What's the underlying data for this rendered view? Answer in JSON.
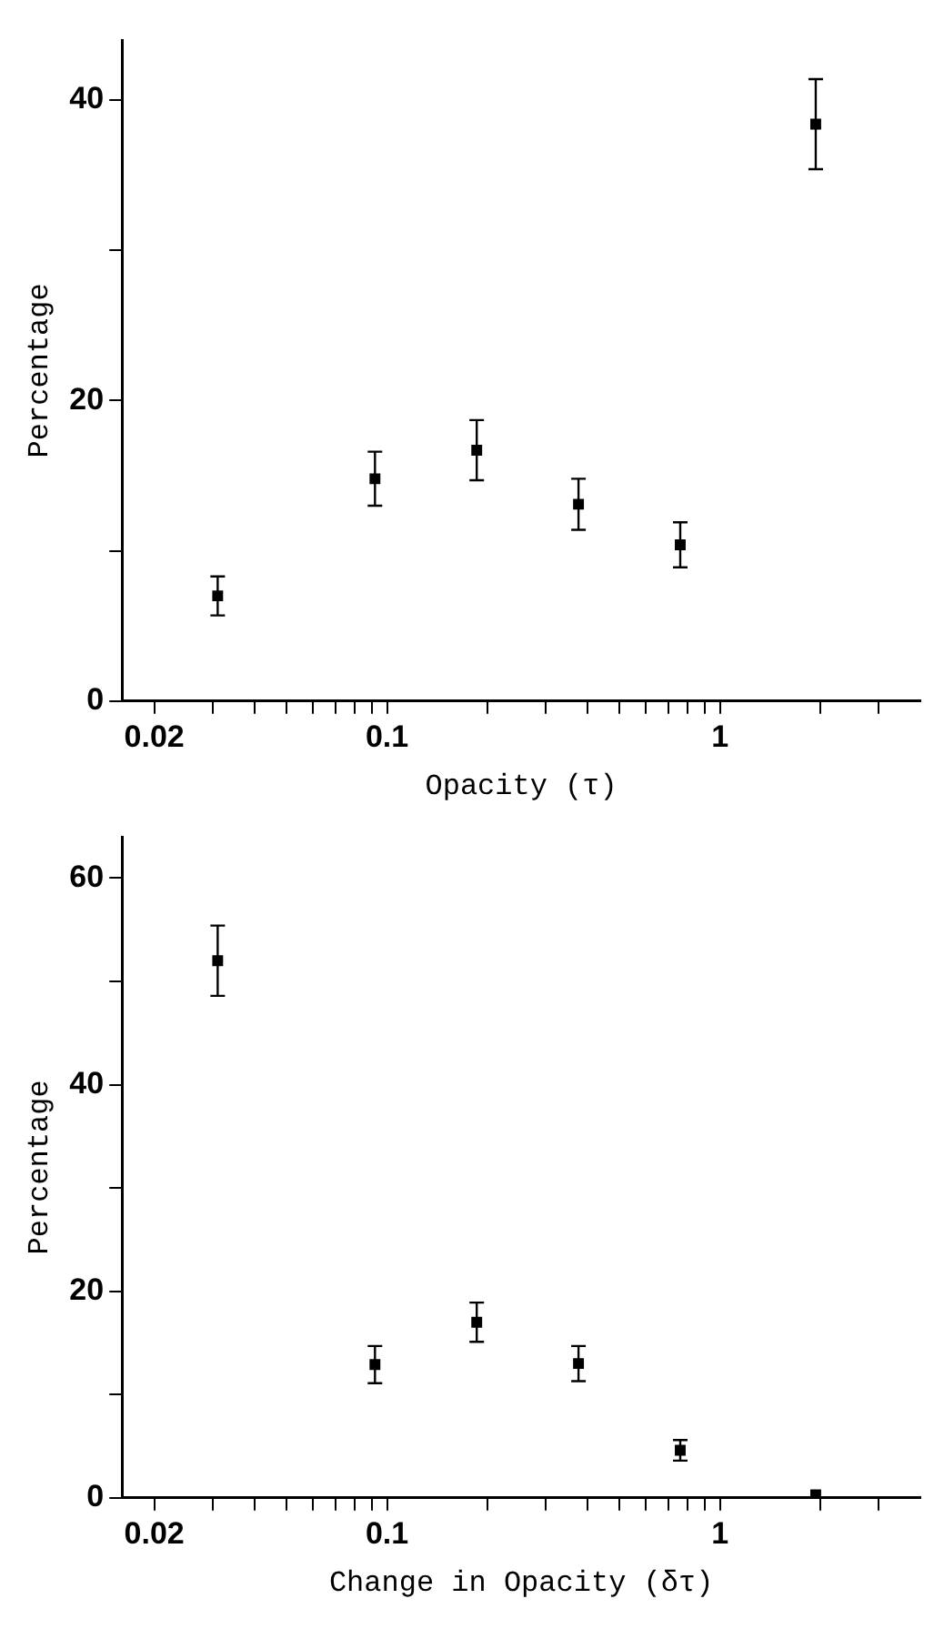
{
  "chart_data": [
    {
      "type": "scatter",
      "xlabel": "Opacity (τ)",
      "ylabel": "Percentage",
      "log": "x",
      "marker": "square",
      "grid": false,
      "legend": false,
      "series": [
        {
          "x": [
            0.031,
            0.092,
            0.186,
            0.376,
            0.76,
            1.94
          ],
          "values": [
            7.0,
            14.8,
            16.7,
            13.1,
            10.4,
            38.4
          ],
          "errors": [
            1.3,
            1.8,
            2.0,
            1.7,
            1.5,
            3.0
          ],
          "color": "#000000"
        }
      ],
      "xlim": [
        0.016,
        4
      ],
      "xticks": [
        {
          "value": 0.02,
          "label": "0.02"
        },
        {
          "value": 0.03,
          "label": null
        },
        {
          "value": 0.04,
          "label": null
        },
        {
          "value": 0.05,
          "label": null
        },
        {
          "value": 0.06,
          "label": null
        },
        {
          "value": 0.07,
          "label": null
        },
        {
          "value": 0.08,
          "label": null
        },
        {
          "value": 0.09,
          "label": null
        },
        {
          "value": 0.1,
          "label": "0.1"
        },
        {
          "value": 0.2,
          "label": null
        },
        {
          "value": 0.3,
          "label": null
        },
        {
          "value": 0.4,
          "label": null
        },
        {
          "value": 0.5,
          "label": null
        },
        {
          "value": 0.6,
          "label": null
        },
        {
          "value": 0.7,
          "label": null
        },
        {
          "value": 0.8,
          "label": null
        },
        {
          "value": 0.9,
          "label": null
        },
        {
          "value": 1,
          "label": "1"
        },
        {
          "value": 2,
          "label": null
        },
        {
          "value": 3,
          "label": null
        }
      ],
      "ylim": [
        0,
        44
      ],
      "yticks": [
        0,
        {
          "value": 10,
          "label": null
        },
        20,
        {
          "value": 30,
          "label": null
        },
        40
      ]
    },
    {
      "type": "scatter",
      "xlabel": "Change in Opacity (δτ)",
      "ylabel": "Percentage",
      "log": "x",
      "marker": "square",
      "grid": false,
      "legend": false,
      "series": [
        {
          "x": [
            0.031,
            0.092,
            0.186,
            0.376,
            0.76,
            1.94
          ],
          "values": [
            52.0,
            12.9,
            17.0,
            13.0,
            4.6,
            0.3
          ],
          "errors": [
            3.4,
            1.8,
            1.9,
            1.7,
            1.0,
            null
          ],
          "color": "#000000"
        }
      ],
      "xlim": [
        0.016,
        4
      ],
      "xticks": [
        {
          "value": 0.02,
          "label": "0.02"
        },
        {
          "value": 0.03,
          "label": null
        },
        {
          "value": 0.04,
          "label": null
        },
        {
          "value": 0.05,
          "label": null
        },
        {
          "value": 0.06,
          "label": null
        },
        {
          "value": 0.07,
          "label": null
        },
        {
          "value": 0.08,
          "label": null
        },
        {
          "value": 0.09,
          "label": null
        },
        {
          "value": 0.1,
          "label": "0.1"
        },
        {
          "value": 0.2,
          "label": null
        },
        {
          "value": 0.3,
          "label": null
        },
        {
          "value": 0.4,
          "label": null
        },
        {
          "value": 0.5,
          "label": null
        },
        {
          "value": 0.6,
          "label": null
        },
        {
          "value": 0.7,
          "label": null
        },
        {
          "value": 0.8,
          "label": null
        },
        {
          "value": 0.9,
          "label": null
        },
        {
          "value": 1,
          "label": "1"
        },
        {
          "value": 2,
          "label": null
        },
        {
          "value": 3,
          "label": null
        }
      ],
      "ylim": [
        0,
        64
      ],
      "yticks": [
        0,
        {
          "value": 10,
          "label": null
        },
        20,
        {
          "value": 30,
          "label": null
        },
        40,
        {
          "value": 50,
          "label": null
        },
        60
      ]
    }
  ]
}
